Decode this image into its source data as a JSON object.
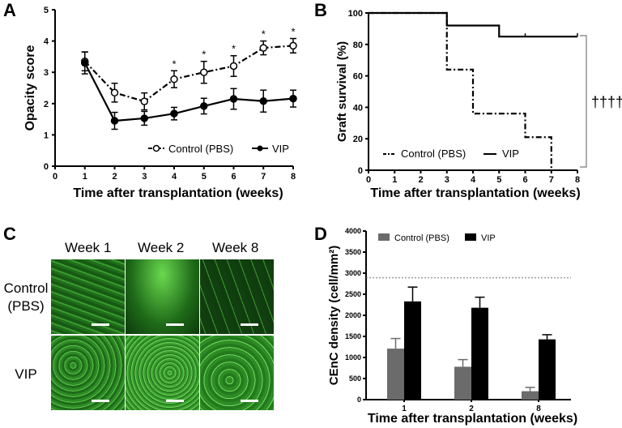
{
  "panels": {
    "a": "A",
    "b": "B",
    "c": "C",
    "d": "D"
  },
  "chart_data": [
    {
      "panel": "A",
      "type": "line",
      "xlabel": "Time after transplantation (weeks)",
      "ylabel": "Opacity score",
      "xlim": [
        0,
        8
      ],
      "ylim": [
        0,
        5
      ],
      "xticks": [
        0,
        1,
        2,
        3,
        4,
        5,
        6,
        7,
        8
      ],
      "yticks": [
        0,
        1,
        2,
        3,
        4,
        5
      ],
      "x": [
        1,
        2,
        3,
        4,
        5,
        6,
        7,
        8
      ],
      "series": [
        {
          "name": "Control (PBS)",
          "style": "dash-dot, open circle",
          "values": [
            3.35,
            2.35,
            2.07,
            2.78,
            3.0,
            3.2,
            3.78,
            3.85
          ],
          "errors": [
            0.3,
            0.3,
            0.27,
            0.27,
            0.35,
            0.33,
            0.22,
            0.23
          ]
        },
        {
          "name": "VIP",
          "style": "solid, filled circle",
          "values": [
            3.3,
            1.45,
            1.53,
            1.68,
            1.92,
            2.15,
            2.08,
            2.16
          ],
          "errors": [
            0.35,
            0.27,
            0.22,
            0.2,
            0.25,
            0.33,
            0.35,
            0.27
          ]
        }
      ],
      "significance": {
        "marker": "*",
        "weeks": [
          4,
          5,
          6,
          7,
          8
        ]
      },
      "legend": "bottom-right"
    },
    {
      "panel": "B",
      "type": "line",
      "xlabel": "Time after transplantation (weeks)",
      "ylabel": "Graft survival (%)",
      "xlim": [
        0,
        8
      ],
      "ylim": [
        0,
        100
      ],
      "xticks": [
        0,
        1,
        2,
        3,
        4,
        5,
        6,
        7,
        8
      ],
      "yticks": [
        0,
        20,
        40,
        60,
        80,
        100
      ],
      "series": [
        {
          "name": "Control (PBS)",
          "style": "step, dash-dot",
          "steps": [
            [
              0,
              100
            ],
            [
              3,
              64
            ],
            [
              4,
              36
            ],
            [
              6,
              21
            ],
            [
              7,
              0
            ]
          ]
        },
        {
          "name": "VIP",
          "style": "step, solid",
          "steps": [
            [
              0,
              100
            ],
            [
              3,
              92
            ],
            [
              5,
              85
            ],
            [
              8,
              85
            ]
          ],
          "censored": [
            6,
            8
          ]
        }
      ],
      "significance": "††††",
      "legend": "bottom-left"
    },
    {
      "panel": "D",
      "type": "bar",
      "xlabel": "Time after transplantation (weeks)",
      "ylabel": "CEnC density (cell/mm²)",
      "ylim": [
        0,
        4000
      ],
      "yticks": [
        0,
        500,
        1000,
        1500,
        2000,
        2500,
        3000,
        3500,
        4000
      ],
      "categories": [
        "1",
        "2",
        "8"
      ],
      "series": [
        {
          "name": "Control (PBS)",
          "color": "#6b6b6b",
          "values": [
            1210,
            780,
            200
          ],
          "errors": [
            240,
            170,
            90
          ]
        },
        {
          "name": "VIP",
          "color": "#000000",
          "values": [
            2330,
            2180,
            1430
          ],
          "errors": [
            340,
            250,
            110
          ]
        }
      ],
      "reference_line": 2890,
      "legend": "top-left"
    }
  ],
  "panel_c": {
    "columns": [
      "Week 1",
      "Week 2",
      "Week 8"
    ],
    "rows": [
      "Control\n(PBS)",
      "VIP"
    ]
  }
}
